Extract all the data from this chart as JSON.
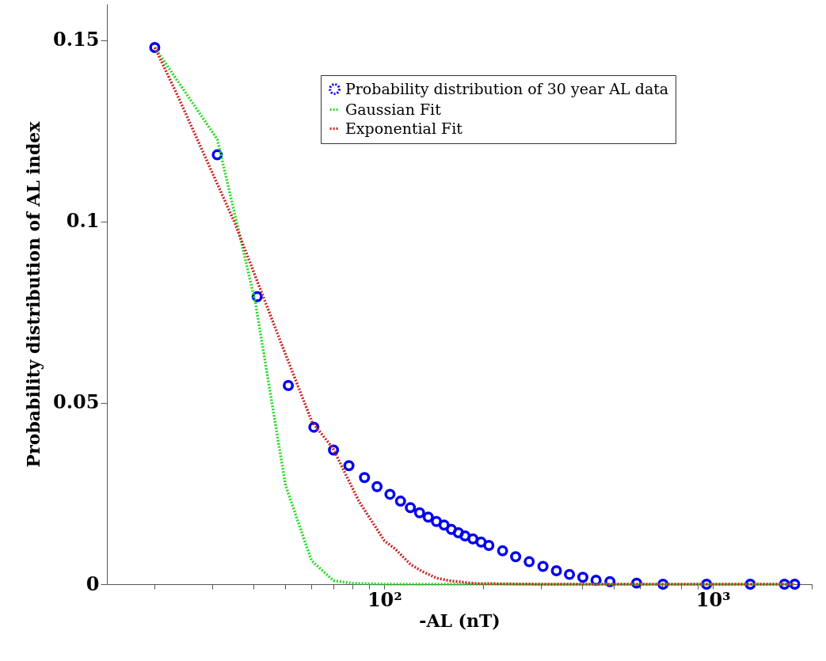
{
  "chart_data": {
    "type": "scatter",
    "xlabel": "-AL (nT)",
    "ylabel": "Probability distribution of AL index",
    "log": "x",
    "grid": false,
    "legend": "top right",
    "xlim": [
      14.3,
      2000
    ],
    "ylim": [
      0,
      0.16
    ],
    "xticks": [
      {
        "value": 20,
        "label": null
      },
      {
        "value": 30,
        "label": null
      },
      {
        "value": 40,
        "label": null
      },
      {
        "value": 50,
        "label": null
      },
      {
        "value": 60,
        "label": null
      },
      {
        "value": 70,
        "label": null
      },
      {
        "value": 80,
        "label": null
      },
      {
        "value": 90,
        "label": null
      },
      {
        "value": 100,
        "label": "10²"
      },
      {
        "value": 200,
        "label": null
      },
      {
        "value": 300,
        "label": null
      },
      {
        "value": 400,
        "label": null
      },
      {
        "value": 500,
        "label": null
      },
      {
        "value": 600,
        "label": null
      },
      {
        "value": 700,
        "label": null
      },
      {
        "value": 800,
        "label": null
      },
      {
        "value": 900,
        "label": null
      },
      {
        "value": 1000,
        "label": "10³"
      },
      {
        "value": 2000,
        "label": null
      }
    ],
    "yticks": [
      0,
      0.05,
      0.1,
      0.15
    ],
    "series": [
      {
        "name": "Probability distribution of 30 year AL data",
        "marker": "circle",
        "color": "#0000ee",
        "x": [
          20,
          31,
          41,
          51,
          61,
          70,
          78,
          87,
          95,
          104,
          112,
          120,
          128,
          136,
          144,
          152,
          160,
          168,
          176,
          186,
          197,
          208,
          229,
          251,
          276,
          304,
          334,
          366,
          402,
          441,
          486,
          586,
          705,
          957,
          1300,
          1652,
          1775
        ],
        "values": [
          0.148,
          0.1184,
          0.0793,
          0.0548,
          0.0433,
          0.037,
          0.0327,
          0.0294,
          0.0269,
          0.0248,
          0.0229,
          0.0211,
          0.0197,
          0.0185,
          0.0173,
          0.0163,
          0.0151,
          0.0142,
          0.0133,
          0.0125,
          0.0116,
          0.0107,
          0.0092,
          0.0076,
          0.0062,
          0.0049,
          0.0037,
          0.0027,
          0.0019,
          0.0011,
          0.0007,
          0.0003,
          0,
          0,
          0,
          0,
          0
        ]
      },
      {
        "name": "Gaussian Fit",
        "type": "line",
        "line_style": "dotted",
        "color": "#22dd22",
        "x": [
          20,
          31,
          40.5,
          50,
          60,
          70,
          79,
          100,
          1775
        ],
        "values": [
          0.148,
          0.1227,
          0.0776,
          0.0273,
          0.0065,
          0.001,
          0.0003,
          0,
          0
        ]
      },
      {
        "name": "Exponential Fit",
        "type": "line",
        "line_style": "dotted",
        "color": "#cc2222",
        "x": [
          20,
          23.4,
          28.1,
          34.9,
          48.4,
          60.2,
          69.7,
          83.6,
          100,
          108,
          120,
          130,
          144,
          157,
          189,
          300,
          1775
        ],
        "values": [
          0.148,
          0.135,
          0.119,
          0.1,
          0.0667,
          0.0448,
          0.0375,
          0.0229,
          0.012,
          0.0097,
          0.0055,
          0.0036,
          0.0017,
          0.001,
          0.0002,
          0,
          0
        ]
      }
    ]
  }
}
